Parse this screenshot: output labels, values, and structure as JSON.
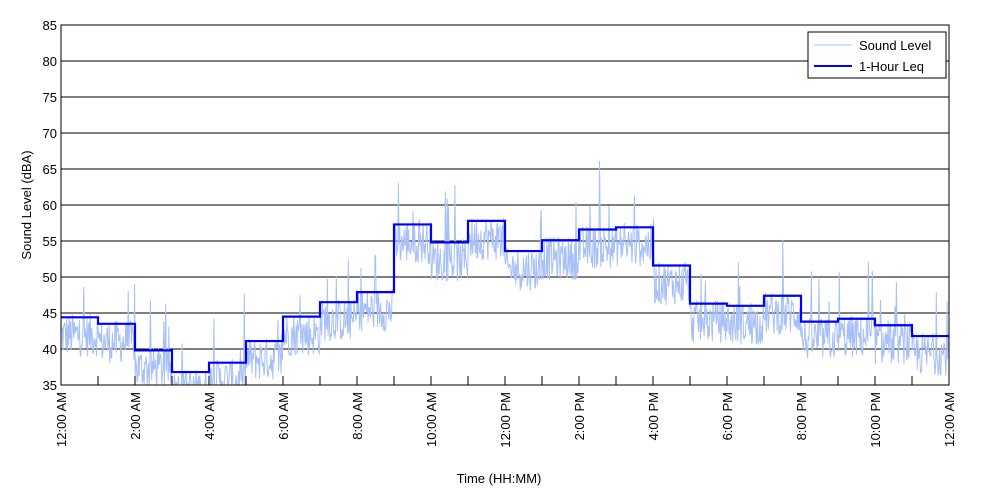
{
  "chart_data": {
    "type": "line",
    "title": "",
    "xlabel": "Time (HH:MM)",
    "ylabel": "Sound Level (dBA)",
    "ylim": [
      35,
      85
    ],
    "yticks": [
      35,
      40,
      45,
      50,
      55,
      60,
      65,
      70,
      75,
      80,
      85
    ],
    "xlim_hours": [
      0,
      24
    ],
    "xtick_labels": [
      "12:00 AM",
      "2:00 AM",
      "4:00 AM",
      "6:00 AM",
      "8:00 AM",
      "10:00 AM",
      "12:00 PM",
      "2:00 PM",
      "4:00 PM",
      "6:00 PM",
      "8:00 PM",
      "10:00 PM",
      "12:00 AM"
    ],
    "grid": "horizontal",
    "legend_position": "top-right",
    "series": [
      {
        "name": "Sound Level",
        "color": "#a8c0f8",
        "style": "thin noisy trace around hourly Leq"
      },
      {
        "name": "1-Hour Leq",
        "color": "#0000ff",
        "style": "step",
        "hours": [
          0,
          1,
          2,
          3,
          4,
          5,
          6,
          7,
          8,
          9,
          10,
          11,
          12,
          13,
          14,
          15,
          16,
          17,
          18,
          19,
          20,
          21,
          22,
          23
        ],
        "values": [
          44.4,
          43.5,
          39.8,
          36.8,
          38.1,
          41.1,
          44.5,
          46.5,
          47.9,
          57.3,
          54.8,
          57.8,
          53.6,
          55.1,
          56.6,
          56.9,
          51.6,
          46.3,
          46.0,
          47.4,
          43.8,
          44.2,
          43.3,
          41.8
        ]
      }
    ]
  }
}
